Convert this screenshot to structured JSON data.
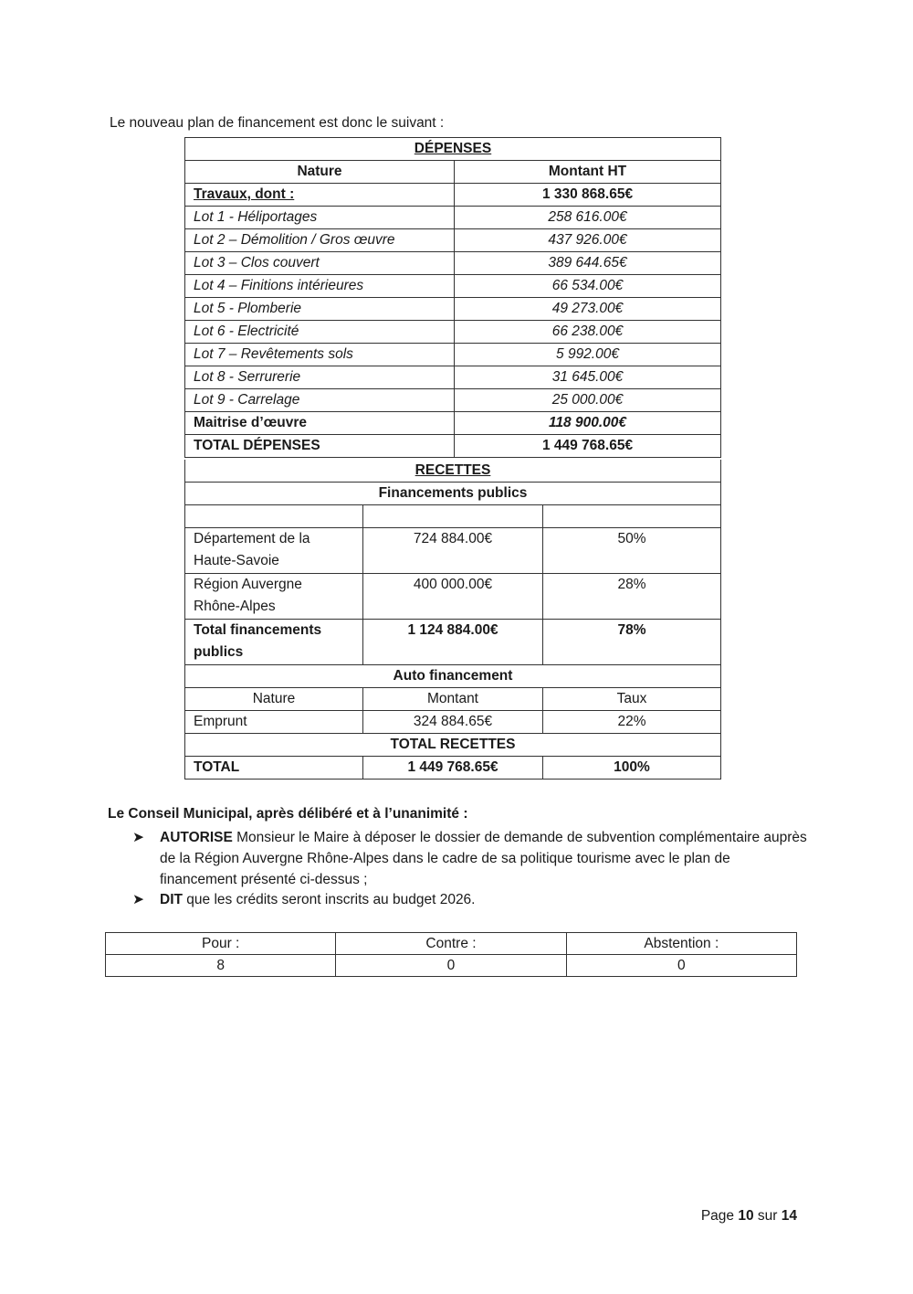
{
  "intro": "Le nouveau plan de financement est donc le suivant :",
  "depenses": {
    "title": "DÉPENSES",
    "headers": [
      "Nature",
      "Montant HT"
    ],
    "travaux": {
      "label": "Travaux, dont :",
      "amount": "1 330 868.65€"
    },
    "lots": [
      {
        "label": "Lot 1 - Héliportages",
        "amount": "258 616.00€"
      },
      {
        "label": "Lot 2 – Démolition / Gros œuvre",
        "amount": "437 926.00€"
      },
      {
        "label": "Lot 3 – Clos couvert",
        "amount": "389 644.65€"
      },
      {
        "label": "Lot 4 – Finitions intérieures",
        "amount": "66 534.00€"
      },
      {
        "label": "Lot 5 - Plomberie",
        "amount": "49 273.00€"
      },
      {
        "label": "Lot 6 - Electricité",
        "amount": "66 238.00€"
      },
      {
        "label": "Lot 7 – Revêtements sols",
        "amount": "5 992.00€"
      },
      {
        "label": "Lot 8 - Serrurerie",
        "amount": "31 645.00€"
      },
      {
        "label": "Lot 9 - Carrelage",
        "amount": "25 000.00€"
      }
    ],
    "maitrise": {
      "label": "Maitrise d’œuvre",
      "amount": "118 900.00€"
    },
    "total": {
      "label": "TOTAL DÉPENSES",
      "amount": "1 449 768.65€"
    }
  },
  "recettes": {
    "title": "RECETTES",
    "public_title": "Financements publics",
    "public_rows": [
      {
        "l1": "Département de la",
        "l2": "Haute-Savoie",
        "amount": "724 884.00€",
        "rate": "50%"
      },
      {
        "l1": "Région Auvergne",
        "l2": "Rhône-Alpes",
        "amount": "400 000.00€",
        "rate": "28%"
      }
    ],
    "public_total": {
      "l1": "Total financements",
      "l2": "publics",
      "amount": "1 124 884.00€",
      "rate": "78%"
    },
    "auto_title": "Auto financement",
    "auto_headers": [
      "Nature",
      "Montant",
      "Taux"
    ],
    "auto_row": {
      "label": "Emprunt",
      "amount": "324 884.65€",
      "rate": "22%"
    },
    "total_title": "TOTAL RECETTES",
    "total": {
      "label": "TOTAL",
      "amount": "1 449 768.65€",
      "rate": "100%"
    }
  },
  "conclusion": {
    "heading": "Le Conseil Municipal, après délibéré et à l’unanimité :",
    "bullets": [
      {
        "keyword": "AUTORISE",
        "text": " Monsieur le Maire à déposer le dossier de demande de subvention complémentaire auprès de la Région Auvergne Rhône-Alpes dans le cadre de sa politique tourisme avec le plan de financement présenté ci-dessus ;"
      },
      {
        "keyword": "DIT",
        "text": " que les crédits seront inscrits au budget 2026."
      }
    ],
    "bullet_icon": "arrowhead-right-icon"
  },
  "vote": {
    "labels": [
      "Pour :",
      "Contre :",
      "Abstention :"
    ],
    "values": [
      "8",
      "0",
      "0"
    ]
  },
  "page": {
    "prefix": "Page ",
    "current": "10",
    "middle": " sur ",
    "total": "14"
  }
}
